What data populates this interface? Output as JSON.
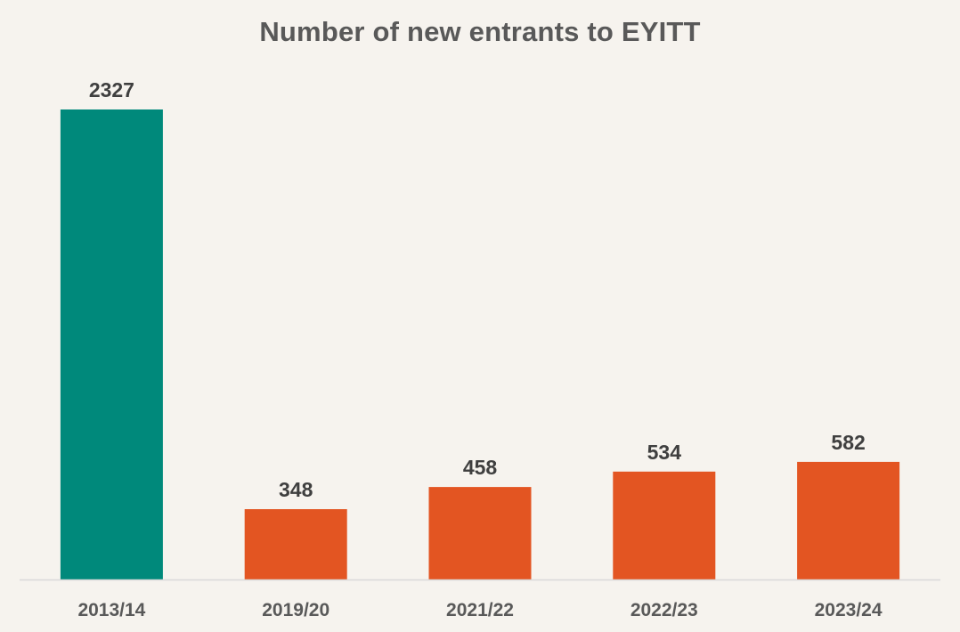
{
  "chart_data": {
    "type": "bar",
    "title": "Number of new entrants to EYITT",
    "categories": [
      "2013/14",
      "2019/20",
      "2021/22",
      "2022/23",
      "2023/24"
    ],
    "values": [
      2327,
      348,
      458,
      534,
      582
    ],
    "bar_colors": [
      "#00897b",
      "#e35522",
      "#e35522",
      "#e35522",
      "#e35522"
    ],
    "data_labels": [
      "2327",
      "348",
      "458",
      "534",
      "582"
    ],
    "xlabel": "",
    "ylabel": "",
    "ylim": [
      0,
      2327
    ],
    "grid": false,
    "legend": "none",
    "axis_color": "#d9d9d9",
    "background": "#f6f3ee"
  }
}
